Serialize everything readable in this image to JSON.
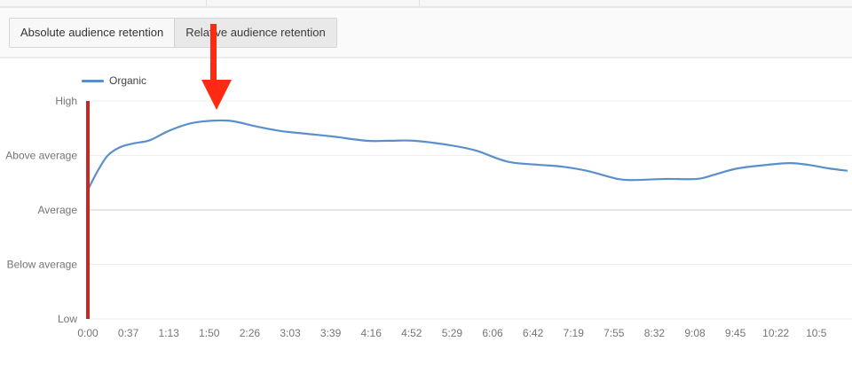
{
  "toolbar": {
    "tabs": [
      {
        "label": "Absolute audience retention",
        "active": false
      },
      {
        "label": "Relative audience retention",
        "active": true
      }
    ]
  },
  "legend": {
    "items": [
      {
        "label": "Organic",
        "color": "#5b8fcc"
      }
    ]
  },
  "annotation": {
    "type": "arrow",
    "color": "#ff2a12",
    "points_to": "1:50 peak"
  },
  "colors": {
    "series": "#5b8fcc",
    "playhead": "#c62828",
    "gridline": "#eeeeee",
    "axis_text": "#757575"
  },
  "chart_data": {
    "type": "line",
    "title": "",
    "xlabel": "",
    "ylabel": "",
    "y_categories": [
      "Low",
      "Below average",
      "Average",
      "Above average",
      "High"
    ],
    "ylim": [
      0,
      4
    ],
    "x_ticks": [
      "0:00",
      "0:37",
      "1:13",
      "1:50",
      "2:26",
      "3:03",
      "3:39",
      "4:16",
      "4:52",
      "5:29",
      "6:06",
      "6:42",
      "7:19",
      "7:55",
      "8:32",
      "9:08",
      "9:45",
      "10:22",
      "10:5"
    ],
    "grid": true,
    "legend_position": "top-left",
    "series": [
      {
        "name": "Organic",
        "x": [
          "0:00",
          "0:09",
          "0:18",
          "0:29",
          "0:41",
          "0:56",
          "1:13",
          "1:33",
          "1:54",
          "2:11",
          "2:33",
          "2:54",
          "3:17",
          "3:41",
          "4:12",
          "4:32",
          "4:55",
          "5:27",
          "5:51",
          "6:19",
          "6:47",
          "7:07",
          "7:31",
          "7:59",
          "8:15",
          "8:43",
          "9:11",
          "9:27",
          "9:47",
          "10:15",
          "10:35",
          "10:51",
          "11:11",
          "11:27"
        ],
        "values": [
          2.37,
          2.72,
          3.0,
          3.15,
          3.22,
          3.28,
          3.45,
          3.59,
          3.64,
          3.63,
          3.53,
          3.45,
          3.4,
          3.35,
          3.27,
          3.27,
          3.27,
          3.19,
          3.09,
          2.89,
          2.83,
          2.8,
          2.72,
          2.57,
          2.55,
          2.57,
          2.57,
          2.65,
          2.76,
          2.83,
          2.86,
          2.83,
          2.76,
          2.72
        ]
      }
    ],
    "playhead_position": "0:00",
    "annotation": "Red arrow pointing down to peak near 1:50"
  }
}
